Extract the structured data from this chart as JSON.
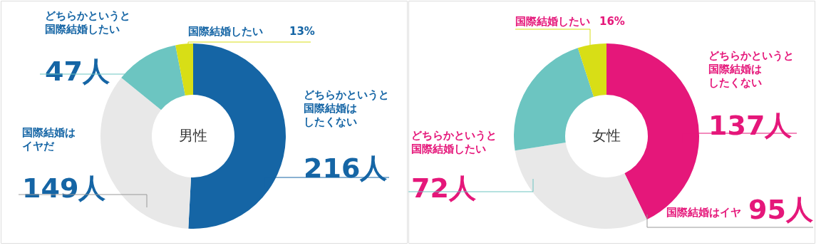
{
  "chart_data": [
    {
      "type": "donut",
      "title": "男性",
      "categories": [
        "どちらかというと国際結婚はしたくない",
        "国際結婚はイヤだ",
        "どちらかというと国際結婚したい",
        "国際結婚したい"
      ],
      "values": [
        216,
        149,
        47,
        13
      ],
      "colors": [
        "#1565a5",
        "#e8e8e8",
        "#6cc5c1",
        "#d8de16"
      ],
      "value_labels": [
        "216人",
        "149人",
        "47人",
        "13%"
      ]
    },
    {
      "type": "donut",
      "title": "女性",
      "categories": [
        "どちらかというと国際結婚はしたくない",
        "国際結婚はイヤ",
        "どちらかというと国際結婚したい",
        "国際結婚したい"
      ],
      "values": [
        137,
        95,
        72,
        16
      ],
      "colors": [
        "#e5177a",
        "#e8e8e8",
        "#6cc5c1",
        "#d8de16"
      ],
      "value_labels": [
        "137人",
        "95人",
        "72人",
        "16%"
      ]
    }
  ]
}
